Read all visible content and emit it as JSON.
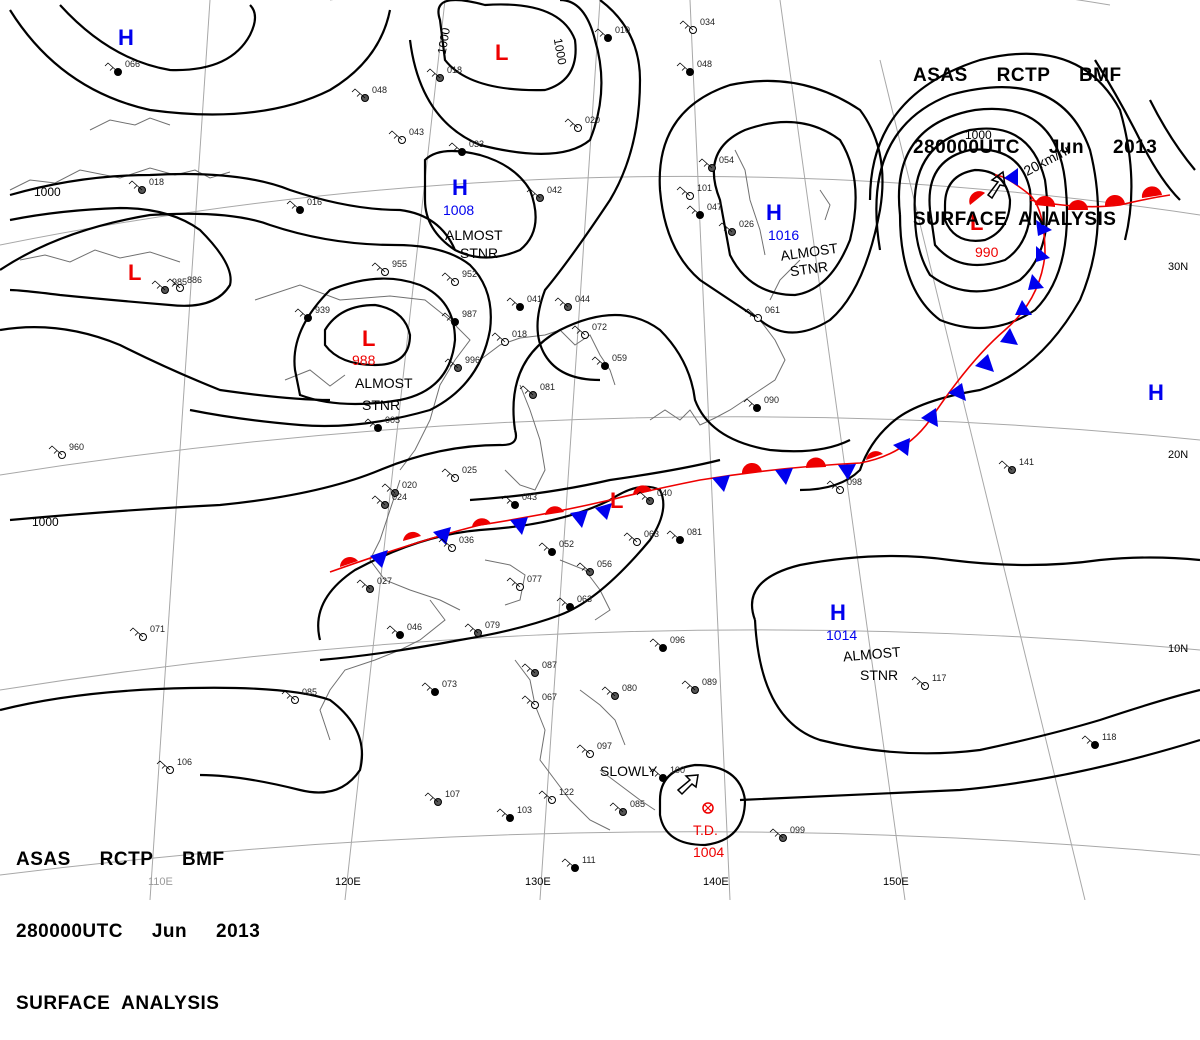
{
  "header": {
    "agency_line": "ASAS     RCTP     BMF",
    "time_line": "280000UTC     Jun     2013",
    "product_line": "SURFACE  ANALYSIS"
  },
  "footer": {
    "agency_line": "ASAS     RCTP     BMF",
    "time_line": "280000UTC     Jun     2013",
    "product_line": "SURFACE  ANALYSIS"
  },
  "longitude_labels": [
    "110E",
    "120E",
    "130E",
    "140E",
    "150E"
  ],
  "latitude_labels": [
    "30N",
    "20N",
    "10N"
  ],
  "pressure_centers": [
    {
      "type": "H",
      "pressure": ""
    },
    {
      "type": "L",
      "pressure": ""
    },
    {
      "type": "H",
      "pressure": "1008"
    },
    {
      "type": "L",
      "pressure": ""
    },
    {
      "type": "L",
      "pressure": "988"
    },
    {
      "type": "H",
      "pressure": "1016"
    },
    {
      "type": "L",
      "pressure": "990"
    },
    {
      "type": "H",
      "pressure": ""
    },
    {
      "type": "H",
      "pressure": "1014"
    },
    {
      "type": "L",
      "pressure": ""
    }
  ],
  "isobar_labels": [
    "1000",
    "1000",
    "1000",
    "1000",
    "1000"
  ],
  "annotations": {
    "almost_stnr_1": [
      "ALMOST",
      "STNR"
    ],
    "almost_stnr_2": [
      "ALMOST",
      "STNR"
    ],
    "almost_stnr_3": [
      "ALMOST",
      "STNR"
    ],
    "almost_stnr_4": [
      "ALMOST",
      "STNR"
    ],
    "motion_label": "20km/hr",
    "slowly_label": "SLOWLY",
    "td_label": "T.D.",
    "td_pressure": "1004"
  },
  "stations": [
    "066",
    "048",
    "043",
    "033",
    "042",
    "020",
    "010",
    "018",
    "034",
    "048",
    "054",
    "101",
    "047",
    "026",
    "061",
    "005",
    "020",
    "952",
    "987",
    "996",
    "018",
    "041",
    "044",
    "072",
    "059",
    "081",
    "955",
    "939",
    "985",
    "025",
    "043",
    "024",
    "036",
    "052",
    "056",
    "077",
    "063",
    "040",
    "063",
    "081",
    "079",
    "071",
    "046",
    "027",
    "085",
    "073",
    "087",
    "067",
    "096",
    "089",
    "097",
    "100",
    "080",
    "122",
    "103",
    "107",
    "106",
    "111",
    "085",
    "098",
    "090",
    "141",
    "117",
    "118",
    "099",
    "960",
    "016",
    "018",
    "886"
  ],
  "colors": {
    "isobar": "#000000",
    "high": "#0000ee",
    "low": "#ee0000",
    "warm_front": "#ee0000",
    "cold_front": "#0000ee",
    "grid": "#a0a0a0",
    "coast": "#6e6e6e"
  }
}
